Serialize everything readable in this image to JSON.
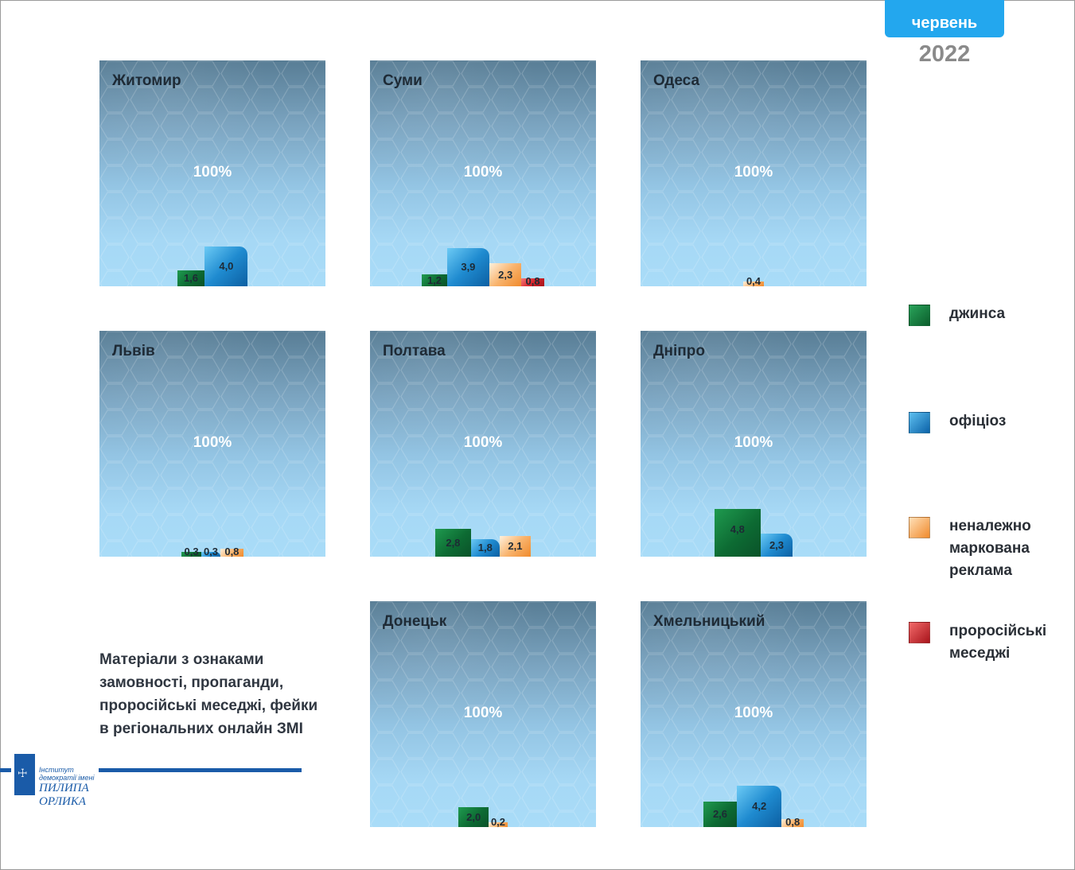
{
  "header": {
    "month": "червень",
    "year": "2022"
  },
  "legend": [
    {
      "key": "jeans",
      "label": "джинса",
      "color": "#0f7a3a"
    },
    {
      "key": "official",
      "label": "офіціоз",
      "color": "#1f8bd0"
    },
    {
      "key": "ads",
      "label": "неналежно маркована реклама",
      "color": "#f6a85c"
    },
    {
      "key": "prorus",
      "label": "проросійські меседжі",
      "color": "#d8232a"
    }
  ],
  "caption": "Матеріали з ознаками замовності, пропаганди, проросійські меседжі, фейки в регіональних онлайн ЗМІ",
  "logo": {
    "line1": "Інститут демократії імені",
    "line2": "ПИЛИПА ОРЛИКА"
  },
  "chart_data": {
    "type": "bar",
    "total_label": "100%",
    "unit": "%",
    "series": [
      "джинса",
      "офіціоз",
      "неналежно маркована реклама",
      "проросійські меседжі"
    ],
    "ylim": [
      0,
      100
    ],
    "panels": [
      {
        "city": "Житомир",
        "bars": [
          {
            "series": "джинса",
            "value": 1.6,
            "label": "1,6"
          },
          {
            "series": "офіціоз",
            "value": 4.0,
            "label": "4,0"
          }
        ]
      },
      {
        "city": "Суми",
        "bars": [
          {
            "series": "джинса",
            "value": 1.2,
            "label": "1,2"
          },
          {
            "series": "офіціоз",
            "value": 3.9,
            "label": "3,9"
          },
          {
            "series": "неналежно маркована реклама",
            "value": 2.3,
            "label": "2,3"
          },
          {
            "series": "проросійські меседжі",
            "value": 0.8,
            "label": "0,8"
          }
        ]
      },
      {
        "city": "Одеса",
        "bars": [
          {
            "series": "неналежно маркована реклама",
            "value": 0.4,
            "label": "0,4"
          }
        ]
      },
      {
        "city": "Львів",
        "bars": [
          {
            "series": "джинса",
            "value": 0.3,
            "label": "0,3"
          },
          {
            "series": "офіціоз",
            "value": 0.3,
            "label": "0,3"
          },
          {
            "series": "неналежно маркована реклама",
            "value": 0.8,
            "label": "0,8"
          }
        ]
      },
      {
        "city": "Полтава",
        "bars": [
          {
            "series": "джинса",
            "value": 2.8,
            "label": "2,8"
          },
          {
            "series": "офіціоз",
            "value": 1.8,
            "label": "1,8"
          },
          {
            "series": "неналежно маркована реклама",
            "value": 2.1,
            "label": "2,1"
          }
        ]
      },
      {
        "city": "Дніпро",
        "bars": [
          {
            "series": "джинса",
            "value": 4.8,
            "label": "4,8"
          },
          {
            "series": "офіціоз",
            "value": 2.3,
            "label": "2,3"
          }
        ]
      },
      {
        "city": "Донецьк",
        "bars": [
          {
            "series": "джинса",
            "value": 2.0,
            "label": "2,0"
          },
          {
            "series": "неналежно маркована реклама",
            "value": 0.2,
            "label": "0,2"
          }
        ]
      },
      {
        "city": "Хмельницький",
        "bars": [
          {
            "series": "джинса",
            "value": 2.6,
            "label": "2,6"
          },
          {
            "series": "офіціоз",
            "value": 4.2,
            "label": "4,2"
          },
          {
            "series": "неналежно маркована реклама",
            "value": 0.8,
            "label": "0,8"
          }
        ]
      }
    ]
  }
}
